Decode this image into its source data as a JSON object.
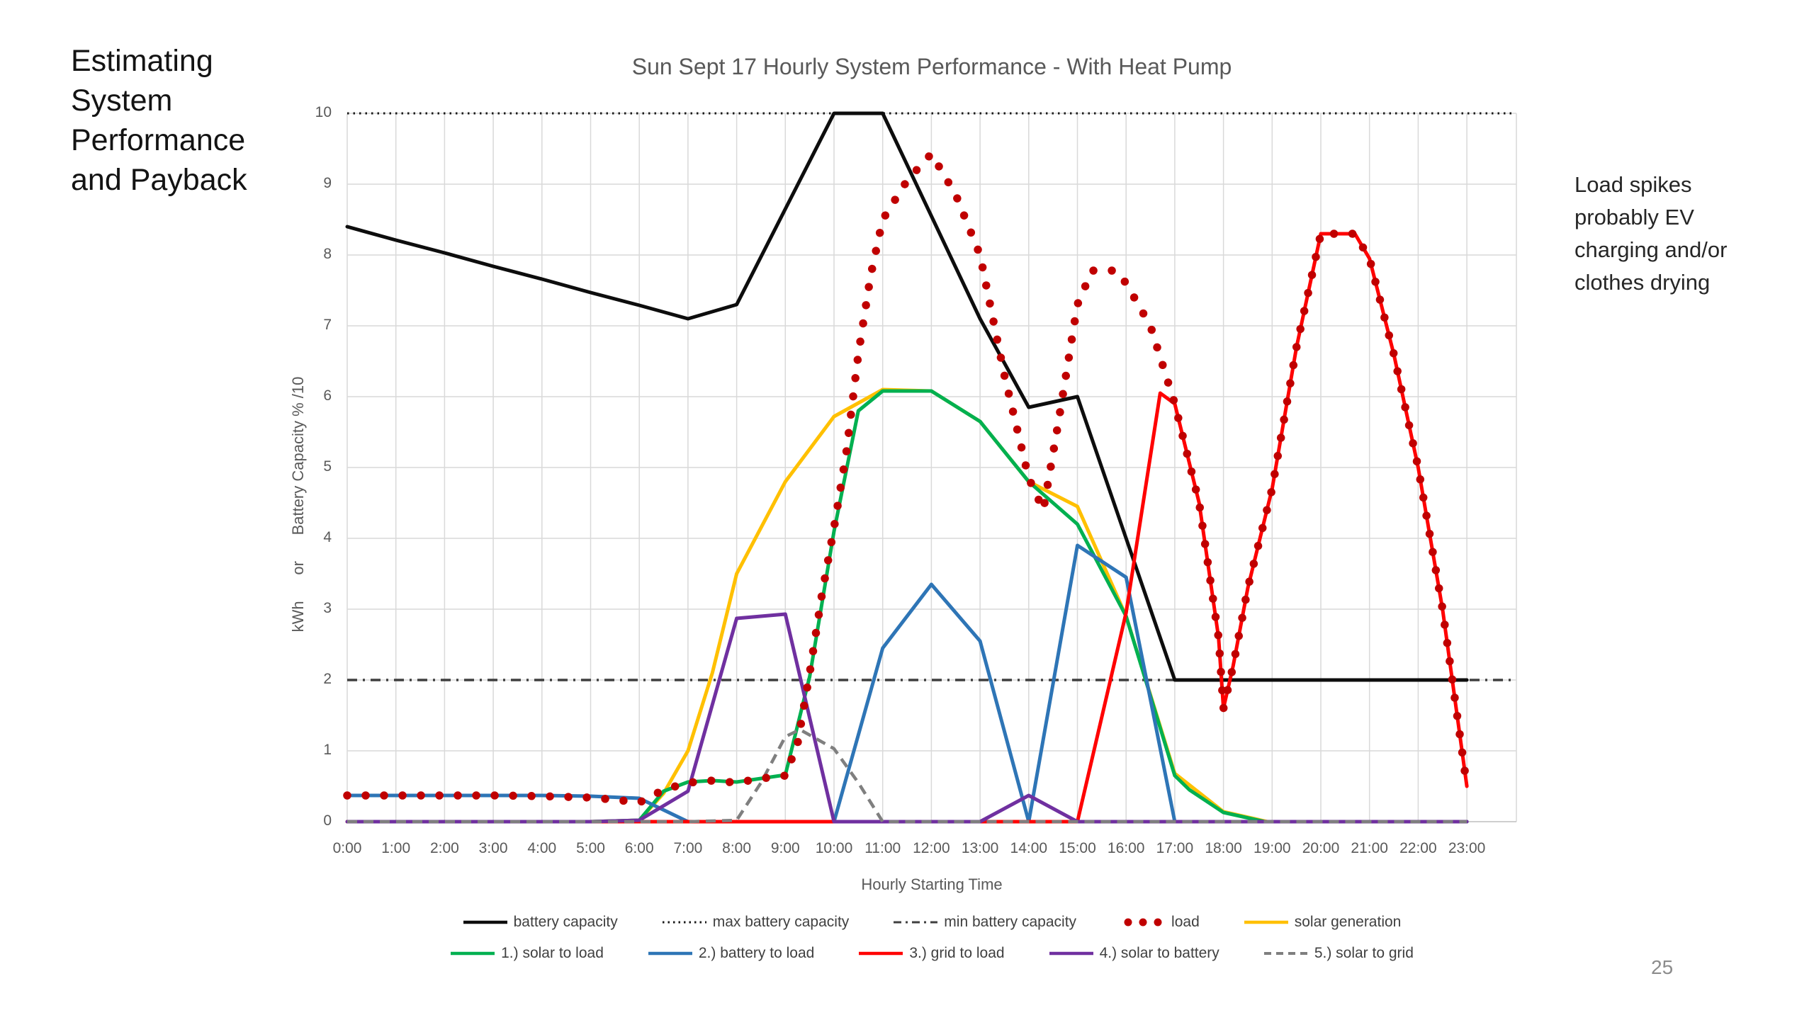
{
  "slide": {
    "title_left": "Estimating\nSystem\nPerformance\nand Payback",
    "annotation_right": "Load spikes\nprobably EV\ncharging and/or\nclothes drying",
    "page_number": "25"
  },
  "chart_data": {
    "type": "line",
    "title": "Sun Sept 17 Hourly System Performance - With Heat Pump",
    "xlabel": "Hourly Starting Time",
    "ylabel": "kWh      or      Battery Capacity % /10",
    "grid": true,
    "legend_position": "bottom",
    "ylim": [
      0,
      10
    ],
    "y_ticks": [
      0,
      1,
      2,
      3,
      4,
      5,
      6,
      7,
      8,
      9,
      10
    ],
    "x_categories": [
      "0:00",
      "1:00",
      "2:00",
      "3:00",
      "4:00",
      "5:00",
      "6:00",
      "7:00",
      "8:00",
      "9:00",
      "10:00",
      "11:00",
      "12:00",
      "13:00",
      "14:00",
      "15:00",
      "16:00",
      "17:00",
      "18:00",
      "19:00",
      "20:00",
      "21:00",
      "22:00",
      "23:00"
    ],
    "colors": {
      "grid": "#D9D9D9",
      "axis": "#BFBFBF",
      "text": "#595959"
    },
    "legend_rows": [
      [
        0,
        1,
        2,
        3,
        4
      ],
      [
        5,
        6,
        7,
        8,
        9
      ]
    ],
    "draw_order": [
      1,
      2,
      0,
      4,
      5,
      6,
      7,
      8,
      9,
      3
    ],
    "series": [
      {
        "name": "battery capacity",
        "color": "#0D0D0D",
        "style": "solid",
        "points": [
          [
            0,
            8.4
          ],
          [
            1,
            8.21
          ],
          [
            2,
            8.03
          ],
          [
            3,
            7.84
          ],
          [
            4,
            7.66
          ],
          [
            5,
            7.47
          ],
          [
            6,
            7.29
          ],
          [
            7,
            7.1
          ],
          [
            8,
            7.3
          ],
          [
            9,
            8.65
          ],
          [
            10,
            10
          ],
          [
            11,
            10
          ],
          [
            12,
            8.55
          ],
          [
            13,
            7.1
          ],
          [
            14,
            5.85
          ],
          [
            15,
            6.0
          ],
          [
            16,
            4.0
          ],
          [
            17,
            2
          ],
          [
            18,
            2
          ],
          [
            19,
            2
          ],
          [
            20,
            2
          ],
          [
            21,
            2
          ],
          [
            22,
            2
          ],
          [
            23,
            2
          ]
        ]
      },
      {
        "name": "max battery capacity",
        "color": "#1A1A1A",
        "style": "dotted",
        "points": [
          [
            0,
            10
          ],
          [
            24,
            10
          ]
        ]
      },
      {
        "name": "min battery capacity",
        "color": "#3F3F3F",
        "style": "dashdot",
        "points": [
          [
            0,
            2
          ],
          [
            24,
            2
          ]
        ]
      },
      {
        "name": "load",
        "color": "#C00000",
        "style": "dots",
        "points": [
          [
            0,
            0.37
          ],
          [
            1,
            0.37
          ],
          [
            2,
            0.37
          ],
          [
            3,
            0.37
          ],
          [
            4,
            0.36
          ],
          [
            5,
            0.34
          ],
          [
            5.5,
            0.31
          ],
          [
            6,
            0.27
          ],
          [
            6.5,
            0.45
          ],
          [
            7,
            0.55
          ],
          [
            7.5,
            0.58
          ],
          [
            8,
            0.55
          ],
          [
            8.5,
            0.61
          ],
          [
            9,
            0.65
          ],
          [
            9.25,
            1.1
          ],
          [
            9.5,
            2.1
          ],
          [
            9.75,
            3.2
          ],
          [
            10,
            4.15
          ],
          [
            10.25,
            5.2
          ],
          [
            10.5,
            6.6
          ],
          [
            10.75,
            7.7
          ],
          [
            11,
            8.5
          ],
          [
            11.5,
            9.05
          ],
          [
            12,
            9.43
          ],
          [
            12.5,
            8.85
          ],
          [
            13,
            8.0
          ],
          [
            13.5,
            6.3
          ],
          [
            14,
            4.85
          ],
          [
            14.3,
            4.4
          ],
          [
            14.6,
            5.6
          ],
          [
            15,
            7.3
          ],
          [
            15.3,
            7.78
          ],
          [
            15.8,
            7.78
          ],
          [
            16,
            7.6
          ],
          [
            16.5,
            7.0
          ],
          [
            17,
            5.9
          ],
          [
            17.5,
            4.5
          ],
          [
            17.9,
            2.6
          ],
          [
            18,
            1.6
          ],
          [
            18.2,
            2.2
          ],
          [
            18.5,
            3.3
          ],
          [
            19,
            4.7
          ],
          [
            19.5,
            6.7
          ],
          [
            20,
            8.3
          ],
          [
            20.7,
            8.3
          ],
          [
            21,
            7.95
          ],
          [
            21.5,
            6.6
          ],
          [
            22,
            5.0
          ],
          [
            22.5,
            3.0
          ],
          [
            23,
            0.5
          ]
        ]
      },
      {
        "name": "solar generation",
        "color": "#FFC000",
        "style": "solid",
        "points": [
          [
            0,
            0
          ],
          [
            1,
            0
          ],
          [
            2,
            0
          ],
          [
            3,
            0
          ],
          [
            4,
            0
          ],
          [
            5,
            0
          ],
          [
            6,
            0.02
          ],
          [
            6.5,
            0.4
          ],
          [
            7,
            1.0
          ],
          [
            7.5,
            2.1
          ],
          [
            8,
            3.5
          ],
          [
            9,
            4.8
          ],
          [
            10,
            5.72
          ],
          [
            11,
            6.1
          ],
          [
            12,
            6.08
          ],
          [
            13,
            5.65
          ],
          [
            14,
            4.8
          ],
          [
            15,
            4.45
          ],
          [
            16,
            2.9
          ],
          [
            17,
            0.68
          ],
          [
            18,
            0.14
          ],
          [
            18.9,
            0
          ],
          [
            20,
            0
          ],
          [
            21,
            0
          ],
          [
            22,
            0
          ],
          [
            23,
            0
          ]
        ]
      },
      {
        "name": "1.) solar to load",
        "color": "#00B050",
        "style": "solid",
        "points": [
          [
            0,
            0
          ],
          [
            1,
            0
          ],
          [
            2,
            0
          ],
          [
            3,
            0
          ],
          [
            4,
            0
          ],
          [
            5,
            0
          ],
          [
            6,
            0.02
          ],
          [
            6.5,
            0.43
          ],
          [
            7,
            0.56
          ],
          [
            7.5,
            0.58
          ],
          [
            8,
            0.56
          ],
          [
            8.5,
            0.61
          ],
          [
            9,
            0.66
          ],
          [
            9.5,
            2.05
          ],
          [
            10,
            4.1
          ],
          [
            10.5,
            5.8
          ],
          [
            11,
            6.08
          ],
          [
            12,
            6.08
          ],
          [
            13,
            5.65
          ],
          [
            14,
            4.8
          ],
          [
            15,
            4.2
          ],
          [
            16,
            2.9
          ],
          [
            17,
            0.65
          ],
          [
            17.3,
            0.45
          ],
          [
            18,
            0.13
          ],
          [
            18.85,
            0
          ],
          [
            20,
            0
          ],
          [
            21,
            0
          ],
          [
            22,
            0
          ],
          [
            23,
            0
          ]
        ]
      },
      {
        "name": "2.) battery to load",
        "color": "#2E75B6",
        "style": "solid",
        "points": [
          [
            0,
            0.37
          ],
          [
            1,
            0.37
          ],
          [
            2,
            0.37
          ],
          [
            3,
            0.37
          ],
          [
            4,
            0.37
          ],
          [
            5,
            0.36
          ],
          [
            6,
            0.33
          ],
          [
            7,
            0
          ],
          [
            8,
            0
          ],
          [
            9,
            0
          ],
          [
            10,
            0
          ],
          [
            11,
            2.45
          ],
          [
            12,
            3.35
          ],
          [
            13,
            2.55
          ],
          [
            14,
            0
          ],
          [
            15,
            3.9
          ],
          [
            16,
            3.45
          ],
          [
            17,
            0
          ],
          [
            18,
            0
          ],
          [
            19,
            0
          ],
          [
            20,
            0
          ],
          [
            21,
            0
          ],
          [
            22,
            0
          ],
          [
            23,
            0
          ]
        ]
      },
      {
        "name": "3.) grid to load",
        "color": "#FF0000",
        "style": "solid",
        "points": [
          [
            0,
            0
          ],
          [
            1,
            0
          ],
          [
            2,
            0
          ],
          [
            3,
            0
          ],
          [
            4,
            0
          ],
          [
            5,
            0
          ],
          [
            6,
            0
          ],
          [
            7,
            0
          ],
          [
            8,
            0
          ],
          [
            9,
            0
          ],
          [
            10,
            0
          ],
          [
            11,
            0
          ],
          [
            12,
            0
          ],
          [
            13,
            0
          ],
          [
            14,
            0
          ],
          [
            15,
            0
          ],
          [
            16,
            2.95
          ],
          [
            16.7,
            6.05
          ],
          [
            17,
            5.9
          ],
          [
            17.5,
            4.5
          ],
          [
            17.9,
            2.6
          ],
          [
            18,
            1.6
          ],
          [
            18.2,
            2.2
          ],
          [
            18.5,
            3.3
          ],
          [
            19,
            4.7
          ],
          [
            19.5,
            6.7
          ],
          [
            20,
            8.3
          ],
          [
            20.7,
            8.3
          ],
          [
            21,
            7.95
          ],
          [
            21.5,
            6.6
          ],
          [
            22,
            5.0
          ],
          [
            22.5,
            3.0
          ],
          [
            23,
            0.5
          ]
        ]
      },
      {
        "name": "4.) solar to battery",
        "color": "#7030A0",
        "style": "solid",
        "points": [
          [
            0,
            0
          ],
          [
            1,
            0
          ],
          [
            2,
            0
          ],
          [
            3,
            0
          ],
          [
            4,
            0
          ],
          [
            5,
            0
          ],
          [
            6,
            0.02
          ],
          [
            7,
            0.43
          ],
          [
            8,
            2.87
          ],
          [
            9,
            2.93
          ],
          [
            10,
            0
          ],
          [
            11,
            0
          ],
          [
            12,
            0
          ],
          [
            13,
            0
          ],
          [
            14,
            0.37
          ],
          [
            15,
            0
          ],
          [
            16,
            0
          ],
          [
            17,
            0
          ],
          [
            18,
            0
          ],
          [
            19,
            0
          ],
          [
            20,
            0
          ],
          [
            21,
            0
          ],
          [
            22,
            0
          ],
          [
            23,
            0
          ]
        ]
      },
      {
        "name": "5.) solar to grid",
        "color": "#7F7F7F",
        "style": "dashed",
        "points": [
          [
            0,
            0
          ],
          [
            1,
            0
          ],
          [
            2,
            0
          ],
          [
            3,
            0
          ],
          [
            4,
            0
          ],
          [
            5,
            0
          ],
          [
            6,
            0
          ],
          [
            7,
            0
          ],
          [
            8,
            0.02
          ],
          [
            8.5,
            0.55
          ],
          [
            9,
            1.2
          ],
          [
            9.3,
            1.3
          ],
          [
            10,
            1.03
          ],
          [
            10.5,
            0.55
          ],
          [
            11,
            0
          ],
          [
            12,
            0
          ],
          [
            13,
            0
          ],
          [
            14,
            0
          ],
          [
            15,
            0
          ],
          [
            16,
            0
          ],
          [
            17,
            0
          ],
          [
            18,
            0
          ],
          [
            19,
            0
          ],
          [
            20,
            0
          ],
          [
            21,
            0
          ],
          [
            22,
            0
          ],
          [
            23,
            0
          ]
        ]
      }
    ]
  }
}
